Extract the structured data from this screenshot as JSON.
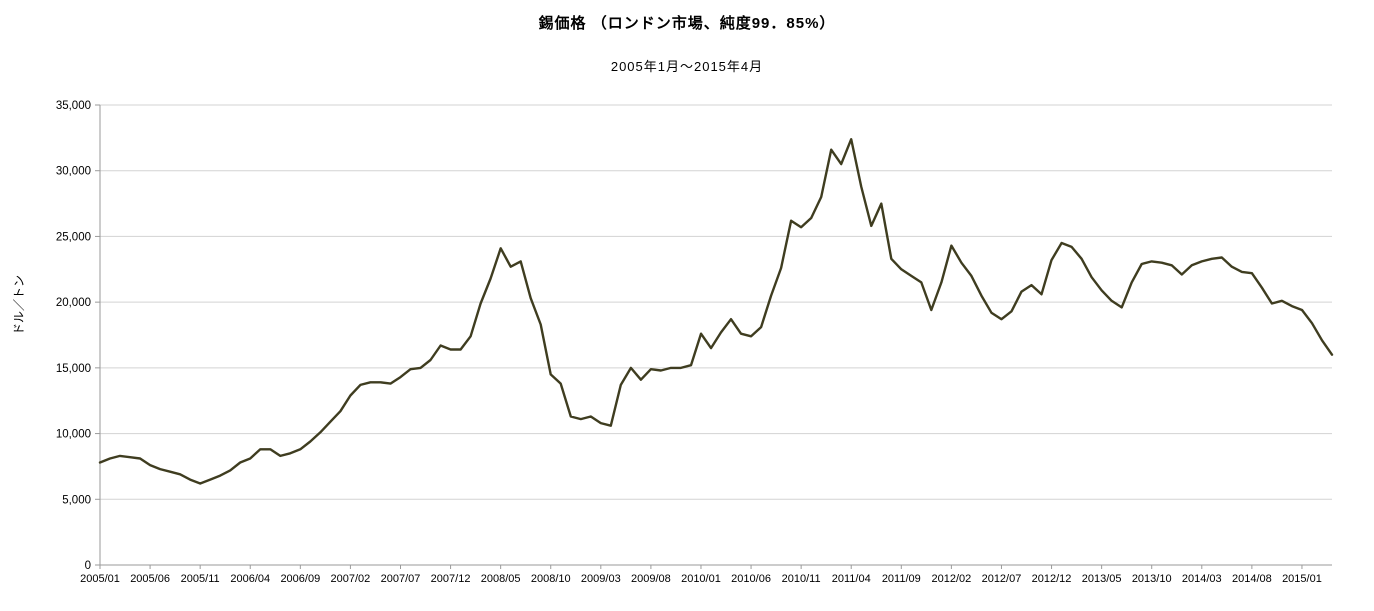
{
  "header": {
    "title": "錫価格 （ロンドン市場、純度99．85%）",
    "subtitle": "2005年1月～2015年4月"
  },
  "chart_data": {
    "type": "line",
    "title": "錫価格 （ロンドン市場、純度99．85%）",
    "subtitle": "2005年1月～2015年4月",
    "xlabel": "",
    "ylabel": "ドル／トン",
    "ylim": [
      0,
      35000
    ],
    "ytick_step": 5000,
    "x_tick_interval": 5,
    "grid": "horizontal",
    "legend": "none",
    "colors": {
      "line": "#3f3d20",
      "grid": "#d3d3d3",
      "axis": "#9a9a9a",
      "text": "#000000"
    },
    "x": [
      "2005/01",
      "2005/02",
      "2005/03",
      "2005/04",
      "2005/05",
      "2005/06",
      "2005/07",
      "2005/08",
      "2005/09",
      "2005/10",
      "2005/11",
      "2005/12",
      "2006/01",
      "2006/02",
      "2006/03",
      "2006/04",
      "2006/05",
      "2006/06",
      "2006/07",
      "2006/08",
      "2006/09",
      "2006/10",
      "2006/11",
      "2006/12",
      "2007/01",
      "2007/02",
      "2007/03",
      "2007/04",
      "2007/05",
      "2007/06",
      "2007/07",
      "2007/08",
      "2007/09",
      "2007/10",
      "2007/11",
      "2007/12",
      "2008/01",
      "2008/02",
      "2008/03",
      "2008/04",
      "2008/05",
      "2008/06",
      "2008/07",
      "2008/08",
      "2008/09",
      "2008/10",
      "2008/11",
      "2008/12",
      "2009/01",
      "2009/02",
      "2009/03",
      "2009/04",
      "2009/05",
      "2009/06",
      "2009/07",
      "2009/08",
      "2009/09",
      "2009/10",
      "2009/11",
      "2009/12",
      "2010/01",
      "2010/02",
      "2010/03",
      "2010/04",
      "2010/05",
      "2010/06",
      "2010/07",
      "2010/08",
      "2010/09",
      "2010/10",
      "2010/11",
      "2010/12",
      "2011/01",
      "2011/02",
      "2011/03",
      "2011/04",
      "2011/05",
      "2011/06",
      "2011/07",
      "2011/08",
      "2011/09",
      "2011/10",
      "2011/11",
      "2011/12",
      "2012/01",
      "2012/02",
      "2012/03",
      "2012/04",
      "2012/05",
      "2012/06",
      "2012/07",
      "2012/08",
      "2012/09",
      "2012/10",
      "2012/11",
      "2012/12",
      "2013/01",
      "2013/02",
      "2013/03",
      "2013/04",
      "2013/05",
      "2013/06",
      "2013/07",
      "2013/08",
      "2013/09",
      "2013/10",
      "2013/11",
      "2013/12",
      "2014/01",
      "2014/02",
      "2014/03",
      "2014/04",
      "2014/05",
      "2014/06",
      "2014/07",
      "2014/08",
      "2014/09",
      "2014/10",
      "2014/11",
      "2014/12",
      "2015/01",
      "2015/02",
      "2015/03",
      "2015/04"
    ],
    "values": [
      7800,
      8100,
      8300,
      8200,
      8100,
      7600,
      7300,
      7100,
      6900,
      6500,
      6200,
      6500,
      6800,
      7200,
      7800,
      8100,
      8800,
      8800,
      8300,
      8500,
      8800,
      9400,
      10100,
      10900,
      11700,
      12900,
      13700,
      13900,
      13900,
      13800,
      14300,
      14900,
      15000,
      15600,
      16700,
      16400,
      16400,
      17400,
      19900,
      21800,
      24100,
      22700,
      23100,
      20300,
      18300,
      14500,
      13800,
      11300,
      11100,
      11300,
      10800,
      10600,
      13700,
      15000,
      14100,
      14900,
      14800,
      15000,
      15000,
      15200,
      17600,
      16500,
      17700,
      18700,
      17600,
      17400,
      18100,
      20500,
      22600,
      26200,
      25700,
      26400,
      28000,
      31600,
      30500,
      32400,
      28800,
      25800,
      27500,
      23300,
      22500,
      22000,
      21500,
      19400,
      21500,
      24300,
      23000,
      22000,
      20500,
      19200,
      18700,
      19300,
      20800,
      21300,
      20600,
      23200,
      24500,
      24200,
      23300,
      21900,
      20900,
      20100,
      19600,
      21500,
      22900,
      23100,
      23000,
      22800,
      22100,
      22800,
      23100,
      23300,
      23400,
      22700,
      22300,
      22200,
      21100,
      19900,
      20100,
      19700,
      19400,
      18400,
      17100,
      16000
    ]
  }
}
